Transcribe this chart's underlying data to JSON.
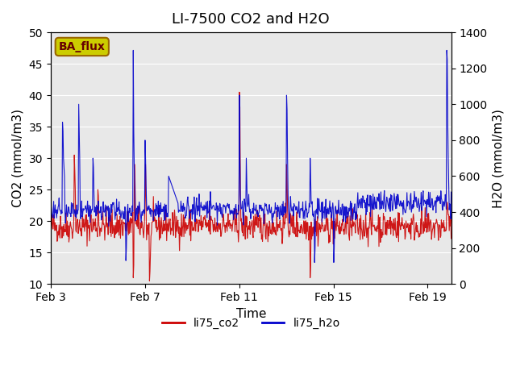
{
  "title": "LI-7500 CO2 and H2O",
  "xlabel": "Time",
  "ylabel_left": "CO2 (mmol/m3)",
  "ylabel_right": "H2O (mmol/m3)",
  "ylim_left": [
    10,
    50
  ],
  "ylim_right": [
    0,
    1400
  ],
  "yticks_left": [
    10,
    15,
    20,
    25,
    30,
    35,
    40,
    45,
    50
  ],
  "yticks_right": [
    0,
    200,
    400,
    600,
    800,
    1000,
    1200,
    1400
  ],
  "xtick_labels": [
    "Feb 3",
    "Feb 7",
    "Feb 11",
    "Feb 15",
    "Feb 19"
  ],
  "color_co2": "#cc0000",
  "color_h2o": "#0000cc",
  "legend_label_co2": "li75_co2",
  "legend_label_h2o": "li75_h2o",
  "annotation_text": "BA_flux",
  "annotation_bg": "#cccc00",
  "annotation_border": "#996600",
  "bg_color": "#e8e8e8",
  "plot_bg_color": "#e8e8e8",
  "title_fontsize": 13,
  "axis_fontsize": 11,
  "tick_fontsize": 10,
  "legend_fontsize": 10,
  "seed": 42
}
